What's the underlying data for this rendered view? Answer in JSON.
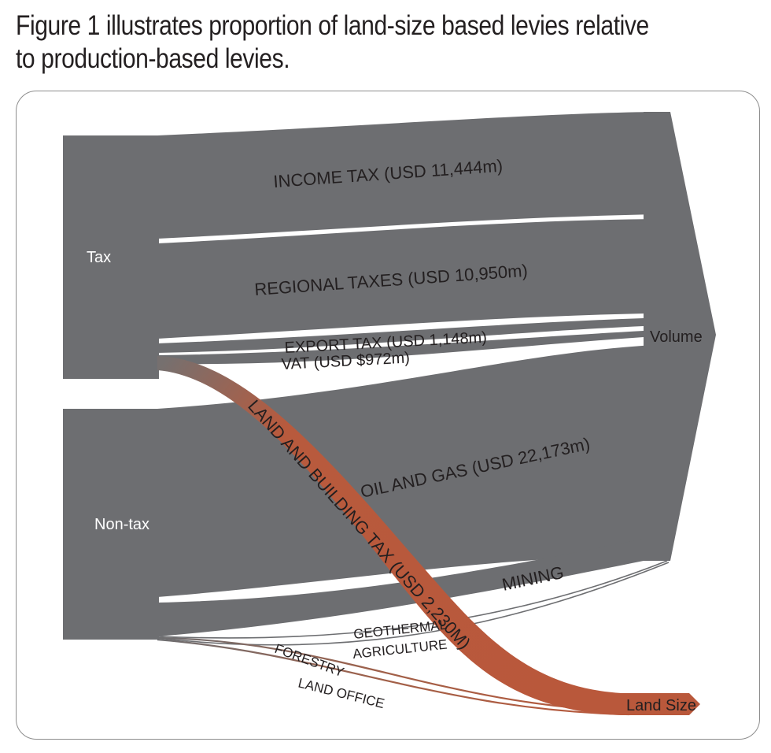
{
  "title": "Figure 1 illustrates proportion of land-size based levies relative to production-based levies.",
  "colors": {
    "flow": "#6d6e71",
    "land": "#b9583b",
    "land_light": "#c97a5d",
    "text_dark": "#231f20",
    "text_light": "#ffffff"
  },
  "chart_data": {
    "type": "sankey",
    "nodes": {
      "tax": "Tax",
      "non_tax": "Non-tax",
      "volume": "Volume",
      "land_size": "Land Size"
    },
    "links": [
      {
        "source": "Tax",
        "target": "Volume",
        "label": "INCOME TAX (USD 11,444m)",
        "value": 11444
      },
      {
        "source": "Tax",
        "target": "Volume",
        "label": "REGIONAL TAXES (USD 10,950m)",
        "value": 10950
      },
      {
        "source": "Tax",
        "target": "Volume",
        "label": "EXPORT TAX (USD 1,148m)",
        "value": 1148
      },
      {
        "source": "Tax",
        "target": "Volume",
        "label": "VAT (USD $972m)",
        "value": 972
      },
      {
        "source": "Tax",
        "target": "Land Size",
        "label": "LAND AND BUILDING TAX (USD 2,230M)",
        "value": 2230
      },
      {
        "source": "Non-tax",
        "target": "Volume",
        "label": "OIL AND GAS (USD 22,173m)",
        "value": 22173
      },
      {
        "source": "Non-tax",
        "target": "Volume",
        "label": "MINING"
      },
      {
        "source": "Non-tax",
        "target": "Volume",
        "label": "GEOTHERMAL"
      },
      {
        "source": "Non-tax",
        "target": "Volume",
        "label": "AGRICULTURE"
      },
      {
        "source": "Non-tax",
        "target": "Land Size",
        "label": "FORESTRY"
      },
      {
        "source": "Non-tax",
        "target": "Land Size",
        "label": "LAND OFFICE"
      }
    ]
  }
}
